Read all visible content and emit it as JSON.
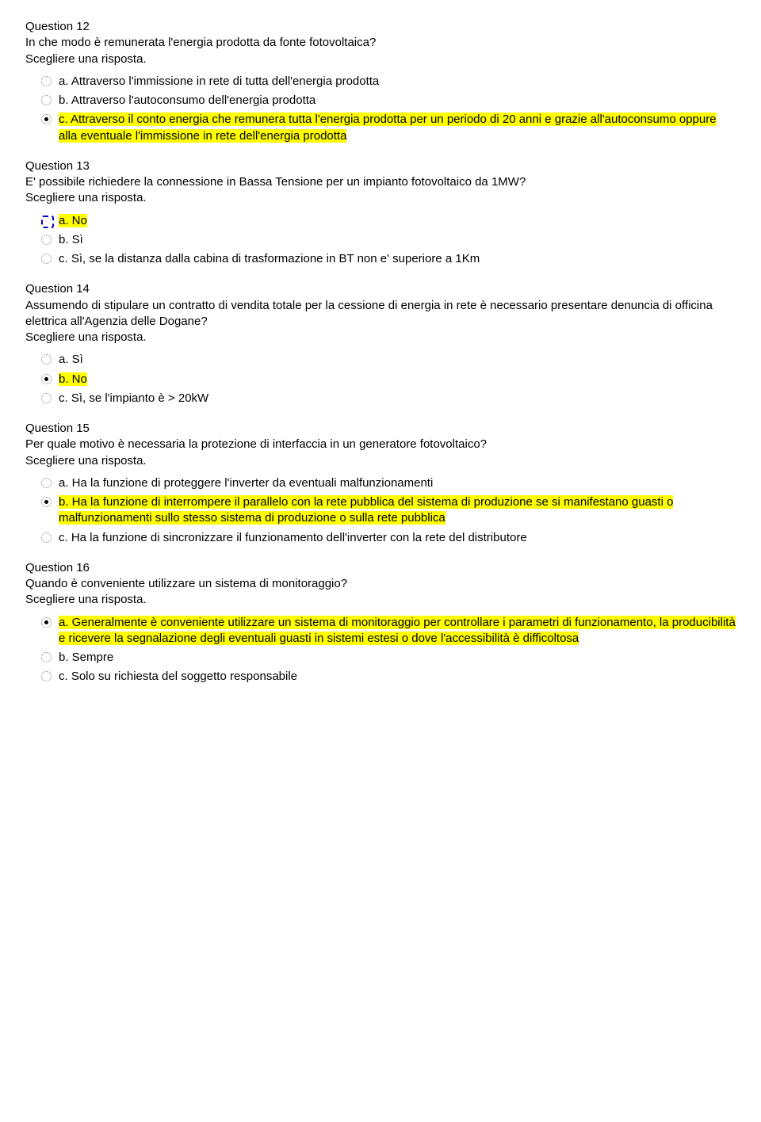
{
  "questions": [
    {
      "number": "Question 12",
      "text": "In che modo è remunerata l'energia prodotta da fonte fotovoltaica?",
      "instruction": "Scegliere una risposta.",
      "options": [
        {
          "label": "a. Attraverso l'immissione in rete di tutta dell'energia prodotta",
          "selected": false,
          "highlight": false,
          "dashed": false
        },
        {
          "label": "b. Attraverso l'autoconsumo dell'energia prodotta",
          "selected": false,
          "highlight": false,
          "dashed": false
        },
        {
          "label": "c. Attraverso il conto energia che remunera tutta l'energia prodotta per un periodo di 20 anni e grazie all'autoconsumo oppure alla eventuale l'immissione in rete dell'energia prodotta",
          "selected": true,
          "highlight": true,
          "dashed": false
        }
      ]
    },
    {
      "number": "Question 13",
      "text": "E' possibile richiedere la connessione in Bassa Tensione per un impianto fotovoltaico da 1MW?",
      "instruction": "Scegliere una risposta.",
      "options": [
        {
          "label": "a. No",
          "selected": false,
          "highlight": true,
          "dashed": true
        },
        {
          "label": "b. Sì",
          "selected": false,
          "highlight": false,
          "dashed": false
        },
        {
          "label": "c. Sì, se la distanza dalla cabina di trasformazione in BT non e' superiore a 1Km",
          "selected": false,
          "highlight": false,
          "dashed": false
        }
      ]
    },
    {
      "number": "Question 14",
      "text": "Assumendo di stipulare un contratto di vendita totale per la cessione di energia in rete è necessario presentare denuncia di officina elettrica all'Agenzia delle Dogane?",
      "instruction": "Scegliere una risposta.",
      "options": [
        {
          "label": "a. Sì",
          "selected": false,
          "highlight": false,
          "dashed": false
        },
        {
          "label": "b. No",
          "selected": true,
          "highlight": true,
          "dashed": false
        },
        {
          "label": "c. Sì, se l'impianto è > 20kW",
          "selected": false,
          "highlight": false,
          "dashed": false
        }
      ]
    },
    {
      "number": "Question 15",
      "text": "Per quale motivo è necessaria la protezione di interfaccia in un generatore fotovoltaico?",
      "instruction": "Scegliere una risposta.",
      "options": [
        {
          "label": "a. Ha la funzione di proteggere l'inverter da eventuali malfunzionamenti",
          "selected": false,
          "highlight": false,
          "dashed": false
        },
        {
          "label": "b. Ha la funzione di interrompere il parallelo con la rete pubblica del sistema di produzione se si manifestano guasti o malfunzionamenti sullo stesso sistema di produzione o sulla rete pubblica",
          "selected": true,
          "highlight": true,
          "dashed": false
        },
        {
          "label": "c. Ha la funzione di sincronizzare il funzionamento dell'inverter con la rete del distributore",
          "selected": false,
          "highlight": false,
          "dashed": false
        }
      ]
    },
    {
      "number": "Question 16",
      "text": "Quando è conveniente utilizzare un sistema di monitoraggio?",
      "instruction": "Scegliere una risposta.",
      "options": [
        {
          "label": "a. Generalmente è conveniente utilizzare un sistema di monitoraggio per controllare i parametri di funzionamento, la producibilità e ricevere la segnalazione degli eventuali guasti in sistemi estesi o dove l'accessibilità è difficoltosa",
          "selected": true,
          "highlight": true,
          "dashed": false
        },
        {
          "label": "b. Sempre",
          "selected": false,
          "highlight": false,
          "dashed": false
        },
        {
          "label": "c. Solo su richiesta del soggetto responsabile",
          "selected": false,
          "highlight": false,
          "dashed": false
        }
      ]
    }
  ]
}
